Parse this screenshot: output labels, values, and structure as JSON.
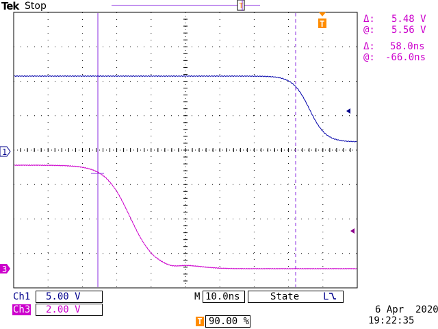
{
  "header": {
    "brand": "Tek",
    "run_state": "Stop",
    "trigger_marker": "T"
  },
  "readout": {
    "volt_delta_label": "Δ:",
    "volt_delta_value": "5.48 V",
    "volt_at_label": "@:",
    "volt_at_value": "5.56 V",
    "time_delta_label": "Δ:",
    "time_delta_value": "58.0ns",
    "time_at_label": "@:",
    "time_at_value": "-66.0ns"
  },
  "channels": [
    {
      "name": "Ch1",
      "scale": "5.00 V",
      "ground_marker": "1",
      "color": "#00008b"
    },
    {
      "name": "Ch3",
      "scale": "2.00 V",
      "ground_marker": "3",
      "color": "#cc00cc"
    }
  ],
  "timebase": {
    "prefix": "M",
    "value": "10.0ns",
    "trigger_mode": "State",
    "trigger_slope_glyph": "L"
  },
  "trigger": {
    "marker": "T",
    "position": "90.00 %"
  },
  "datetime": {
    "date": "6 Apr  2020",
    "time": "19:22:35"
  },
  "colors": {
    "grid": "#000000",
    "cursor": "#8a2be2",
    "trigger": "#ff8c00",
    "ch1": "#0000aa",
    "ch3": "#cc00cc"
  }
}
